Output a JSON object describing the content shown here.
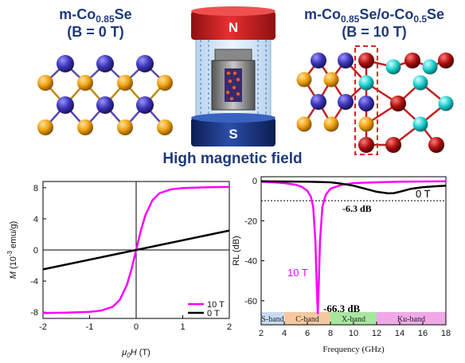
{
  "figure": {
    "left_title": {
      "base": "m-Co",
      "sub": "0.85",
      "tail": "Se",
      "line2": "(B = 0 T)"
    },
    "right_title": {
      "base": "m-Co",
      "sub1": "0.85",
      "mid": "Se/o-Co",
      "sub2": "0.5",
      "tail": "Se",
      "line2": "(B = 10 T)"
    },
    "magnet": {
      "north_label": "N",
      "south_label": "S"
    },
    "caption": "High magnetic field",
    "colors": {
      "title": "#1f3a7a",
      "atom_co": "#3d35b8",
      "atom_se": "#f0a010",
      "atom_red": "#b01010",
      "atom_cyan": "#1fd0d0",
      "magnet_red": "#d42020",
      "magnet_blue": "#1e3a8a",
      "highlight_box": "#e02020"
    }
  },
  "chart_data": [
    {
      "type": "line",
      "xlabel": {
        "mu": "μ",
        "sub": "0",
        "H": "H",
        "unit": " (T)"
      },
      "ylabel": {
        "M": "M",
        "rest": " (10",
        "exp": "-3",
        "unit": " emu/g)"
      },
      "xlim": [
        -2,
        2
      ],
      "ylim": [
        -8.8,
        8.8
      ],
      "xticks": [
        "-2",
        "-1",
        "0",
        "1",
        "2"
      ],
      "yticks": [
        "-8",
        "-4",
        "0",
        "4",
        "8"
      ],
      "legend_position": "bottom-right",
      "series": [
        {
          "name": "10 T",
          "color": "#ff00ff",
          "x": [
            -2,
            -1.5,
            -1,
            -0.75,
            -0.5,
            -0.35,
            -0.2,
            -0.1,
            0,
            0.1,
            0.2,
            0.35,
            0.5,
            0.75,
            1,
            1.5,
            2
          ],
          "y": [
            -8.1,
            -8.05,
            -7.95,
            -7.8,
            -7.3,
            -6.4,
            -4.5,
            -2.5,
            0,
            2.5,
            4.5,
            6.4,
            7.3,
            7.8,
            7.95,
            8.05,
            8.1
          ]
        },
        {
          "name": "0 T",
          "color": "#000000",
          "x": [
            -2,
            2
          ],
          "y": [
            -2.5,
            2.5
          ]
        }
      ]
    },
    {
      "type": "line",
      "xlabel": "Frequency (GHz)",
      "ylabel": "RL (dB)",
      "xlim": [
        2,
        18
      ],
      "ylim": [
        -72,
        2
      ],
      "xticks": [
        "2",
        "4",
        "6",
        "8",
        "10",
        "12",
        "14",
        "16",
        "18"
      ],
      "yticks": [
        "0",
        "-20",
        "-40",
        "-60"
      ],
      "threshold": -10,
      "series": [
        {
          "name": "10 T",
          "color": "#ff00ff",
          "x": [
            2,
            3,
            4,
            5,
            5.5,
            6,
            6.3,
            6.5,
            6.7,
            6.8,
            6.9,
            7,
            7.1,
            7.3,
            7.6,
            8,
            9,
            10,
            12,
            14,
            16,
            18
          ],
          "y": [
            -0.5,
            -0.8,
            -1.2,
            -2,
            -3,
            -5,
            -8,
            -13,
            -30,
            -50,
            -66.3,
            -50,
            -30,
            -13,
            -7,
            -4,
            -2,
            -1.2,
            -0.8,
            -0.5,
            -0.4,
            -0.3
          ]
        },
        {
          "name": "0 T",
          "color": "#000000",
          "x": [
            2,
            4,
            6,
            8,
            9,
            10,
            11,
            12,
            13,
            13.5,
            14,
            15,
            16,
            17,
            18
          ],
          "y": [
            -0.3,
            -0.4,
            -0.5,
            -0.8,
            -1.5,
            -2.5,
            -4,
            -5.5,
            -6.3,
            -6.2,
            -5.5,
            -4,
            -3.2,
            -2.8,
            -2.5
          ]
        }
      ],
      "annotations": {
        "label_10T": "10 T",
        "label_0T": "0 T",
        "min_10T": "-66.3 dB",
        "min_0T": "-6.3 dB"
      },
      "bands": [
        {
          "label": "S-band",
          "range": [
            2,
            4
          ],
          "color": "#c7dcf3"
        },
        {
          "label": "C-band",
          "range": [
            4,
            8
          ],
          "color": "#f5c9a0"
        },
        {
          "label": "X-band",
          "range": [
            8,
            12
          ],
          "color": "#a8e6a0"
        },
        {
          "label": "Ku-band",
          "range": [
            12,
            18
          ],
          "color": "#f0a8e8"
        }
      ]
    }
  ]
}
